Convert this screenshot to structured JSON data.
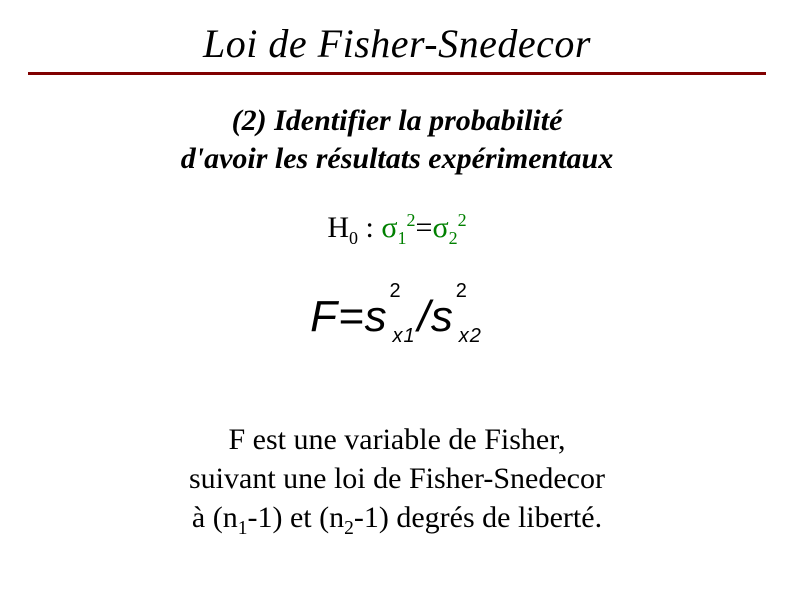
{
  "title": "Loi de Fisher-Snedecor",
  "rule_color": "#800000",
  "subtitle": {
    "line1": "(2) Identifier la probabilité",
    "line2": "d'avoir les résultats expérimentaux"
  },
  "hypothesis": {
    "h_label": "H",
    "h_sub": "0",
    "colon": " : ",
    "sigma": "σ",
    "sub1": "1",
    "sup": "2",
    "eq": "=",
    "sub2": "2",
    "sigma_color": "#008000"
  },
  "formula": {
    "F": "F",
    "eq": "=",
    "s": "s",
    "sup": "2",
    "sub1": "x1",
    "slash": "/",
    "sub2": "x2"
  },
  "body": {
    "l1": "F est une variable de Fisher,",
    "l2": "suivant une loi de Fisher-Snedecor",
    "l3_pre": "à (n",
    "l3_sub1": "1",
    "l3_mid1": "-1) et (n",
    "l3_sub2": "2",
    "l3_mid2": "-1) degrés de liberté."
  }
}
